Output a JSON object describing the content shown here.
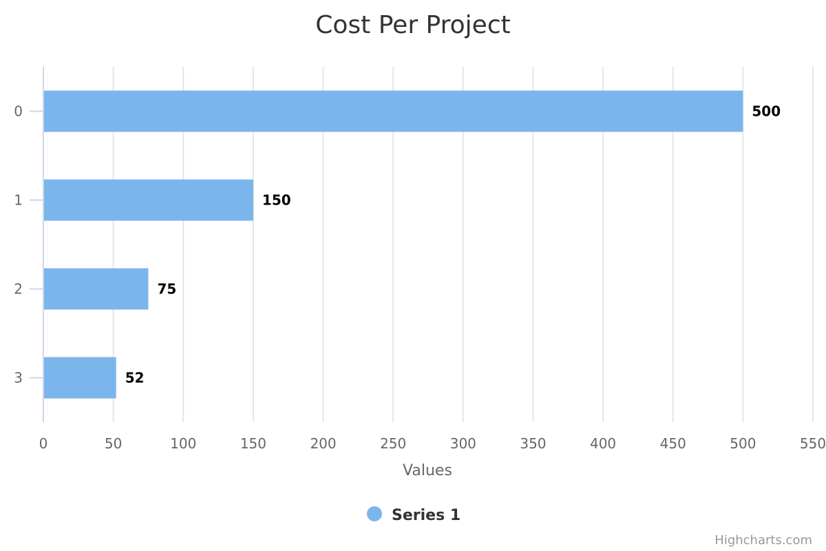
{
  "chart_data": {
    "type": "bar",
    "orientation": "horizontal",
    "title": "Cost Per Project",
    "categories": [
      "0",
      "1",
      "2",
      "3"
    ],
    "series": [
      {
        "name": "Series 1",
        "values": [
          500,
          150,
          75,
          52
        ],
        "color": "#7cb5ec"
      }
    ],
    "xlabel": "Values",
    "ylabel": "",
    "xlim": [
      0,
      550
    ],
    "x_ticks": [
      0,
      50,
      100,
      150,
      200,
      250,
      300,
      350,
      400,
      450,
      500,
      550
    ],
    "grid": true,
    "legend": "bottom-center",
    "data_labels": true
  },
  "credits": "Highcharts.com",
  "colors": {
    "grid": "#e6e6e6",
    "axis": "#ccd6eb",
    "bar": "#7cb5ec"
  }
}
